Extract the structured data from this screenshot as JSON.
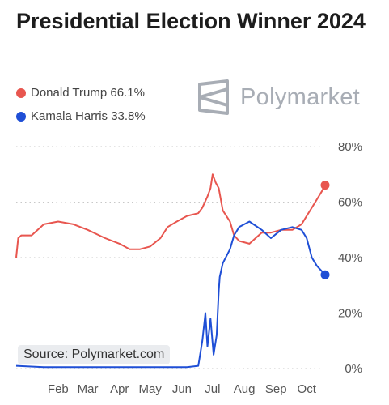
{
  "header": {
    "title": "Presidential Election Winner 2024"
  },
  "legend": {
    "items": [
      {
        "label": "Donald Trump 66.1%",
        "color": "#e8564f"
      },
      {
        "label": "Kamala Harris 33.8%",
        "color": "#1f4fd6"
      }
    ]
  },
  "logo": {
    "text": "Polymarket",
    "icon": "polymarket-logo-icon"
  },
  "source": {
    "text": "Source: Polymarket.com"
  },
  "chart_data": {
    "type": "line",
    "title": "Presidential Election Winner 2024",
    "xlabel": "",
    "ylabel": "",
    "ylim": [
      0,
      80
    ],
    "y_ticks": [
      "0%",
      "20%",
      "40%",
      "60%",
      "80%"
    ],
    "x_ticks": [
      "Feb",
      "Mar",
      "Apr",
      "May",
      "Jun",
      "Jul",
      "Aug",
      "Sep",
      "Oct"
    ],
    "grid": "horizontal dotted",
    "series": [
      {
        "name": "Donald Trump",
        "color": "#e8564f",
        "x": [
          "Jan 5",
          "Jan 7",
          "Jan 10",
          "Jan 20",
          "Feb 1",
          "Feb 15",
          "Mar 1",
          "Mar 15",
          "Apr 1",
          "Apr 15",
          "Apr 25",
          "May 5",
          "May 15",
          "May 25",
          "Jun 1",
          "Jun 10",
          "Jun 20",
          "Jul 1",
          "Jul 5",
          "Jul 10",
          "Jul 13",
          "Jul 15",
          "Jul 18",
          "Jul 21",
          "Jul 25",
          "Aug 1",
          "Aug 5",
          "Aug 10",
          "Aug 20",
          "Sep 1",
          "Sep 10",
          "Sep 20",
          "Oct 1",
          "Oct 10",
          "Oct 15",
          "Oct 20",
          "Oct 25",
          "Oct 30",
          "Nov 2"
        ],
        "values": [
          40,
          47,
          48,
          48,
          52,
          53,
          52,
          50,
          47,
          45,
          43,
          43,
          44,
          47,
          51,
          53,
          55,
          56,
          58,
          62,
          65,
          70,
          67,
          65,
          57,
          53,
          48,
          46,
          45,
          49,
          49,
          50,
          50,
          52,
          55,
          58,
          61,
          64,
          66.1
        ]
      },
      {
        "name": "Kamala Harris",
        "color": "#1f4fd6",
        "x": [
          "Jan 5",
          "Feb 1",
          "Mar 1",
          "Apr 1",
          "May 1",
          "Jun 1",
          "Jun 20",
          "Jul 1",
          "Jul 5",
          "Jul 8",
          "Jul 10",
          "Jul 13",
          "Jul 16",
          "Jul 19",
          "Jul 21",
          "Jul 22",
          "Jul 25",
          "Aug 1",
          "Aug 5",
          "Aug 10",
          "Aug 20",
          "Sep 1",
          "Sep 10",
          "Sep 20",
          "Oct 1",
          "Oct 10",
          "Oct 15",
          "Oct 20",
          "Oct 25",
          "Oct 30",
          "Nov 2"
        ],
        "values": [
          1,
          0.5,
          0.5,
          0.5,
          0.5,
          0.5,
          0.5,
          1,
          10,
          20,
          8,
          18,
          5,
          12,
          28,
          33,
          38,
          43,
          48,
          51,
          53,
          50,
          47,
          50,
          51,
          50,
          47,
          40,
          37,
          35,
          33.8
        ]
      }
    ]
  }
}
